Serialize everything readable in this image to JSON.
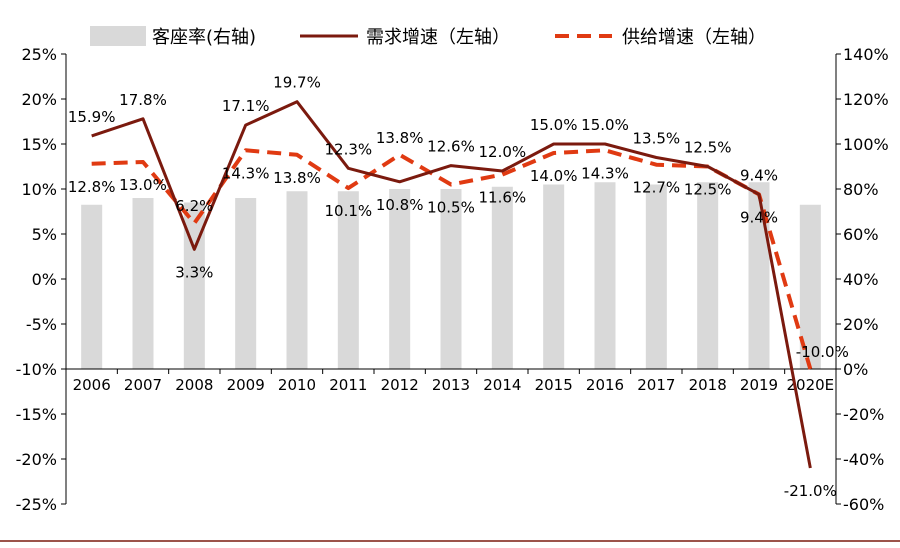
{
  "chart_data": {
    "type": "bar",
    "categories": [
      "2006",
      "2007",
      "2008",
      "2009",
      "2010",
      "2011",
      "2012",
      "2013",
      "2014",
      "2015",
      "2016",
      "2017",
      "2018",
      "2019",
      "2020E"
    ],
    "series": [
      {
        "name": "客座率(右轴)",
        "kind": "bar",
        "axis": "right",
        "color": "#d9d9d9",
        "values": [
          73,
          76,
          74,
          76,
          79,
          79,
          80,
          80,
          81,
          82,
          83,
          82,
          83,
          83,
          73
        ]
      },
      {
        "name": "需求增速（左轴",
        "kind": "line",
        "axis": "left",
        "color": "#7b1a0e",
        "values": [
          15.9,
          17.8,
          3.3,
          17.1,
          19.7,
          12.3,
          10.8,
          12.6,
          12.0,
          15.0,
          15.0,
          13.5,
          12.5,
          9.4,
          -21.0
        ]
      },
      {
        "name": "供给增速（左轴",
        "kind": "dashed-line",
        "axis": "left",
        "color": "#e03a12",
        "values": [
          12.8,
          13.0,
          6.2,
          14.3,
          13.8,
          10.1,
          13.8,
          10.5,
          11.6,
          14.0,
          14.3,
          12.7,
          12.5,
          9.4,
          -10.0
        ]
      }
    ],
    "labels": {
      "demand": [
        "15.9%",
        "17.8%",
        "3.3%",
        "17.1%",
        "19.7%",
        "12.3%",
        "10.8%",
        "12.6%",
        "12.0%",
        "15.0%",
        "15.0%",
        "13.5%",
        "12.5%",
        "9.4%",
        "-21.0%"
      ],
      "supply": [
        "12.8%",
        "13.0%",
        "6.2%",
        "14.3%",
        "13.8%",
        "10.1%",
        "13.8%",
        "10.5%",
        "11.6%",
        "14.0%",
        "14.3%",
        "12.7%",
        "12.5%",
        "9.4%",
        "-10.0%"
      ]
    },
    "left_axis": {
      "ylim": [
        -25,
        25
      ],
      "ticks": [
        "25%",
        "20%",
        "15%",
        "10%",
        "5%",
        "0%",
        "-5%",
        "-10%",
        "-15%",
        "-20%",
        "-25%"
      ]
    },
    "right_axis": {
      "ylim": [
        -60,
        140
      ],
      "ticks": [
        "140%",
        "120%",
        "100%",
        "80%",
        "60%",
        "40%",
        "20%",
        "0%",
        "-20%",
        "-40%",
        "-60%"
      ]
    },
    "category_axis_at": -10,
    "legend_position": "top"
  }
}
